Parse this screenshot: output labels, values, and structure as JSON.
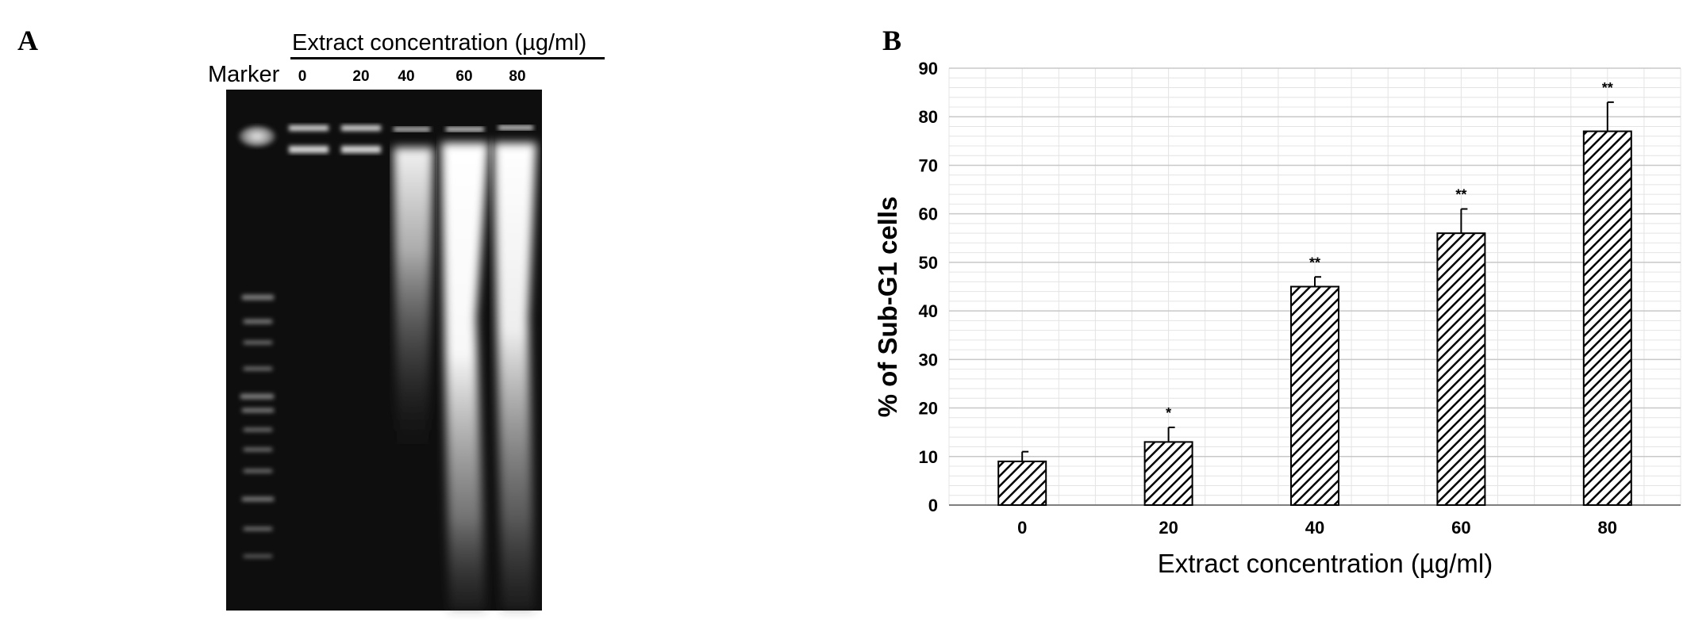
{
  "panel_a": {
    "letter": "A",
    "title": "Extract concentration (µg/ml)",
    "marker_label": "Marker",
    "lanes": [
      "0",
      "20",
      "40",
      "60",
      "80"
    ]
  },
  "panel_b": {
    "letter": "B"
  },
  "chart_data": {
    "type": "bar",
    "categories": [
      "0",
      "20",
      "40",
      "60",
      "80"
    ],
    "values": [
      9,
      13,
      45,
      56,
      77
    ],
    "errors": [
      2,
      3,
      2,
      5,
      6
    ],
    "significance": [
      "",
      "*",
      "**",
      "**",
      "**"
    ],
    "xlabel": "Extract concentration (µg/ml)",
    "ylabel": "% of Sub-G1 cells",
    "ylim": [
      0,
      90
    ],
    "yticks": [
      0,
      10,
      20,
      30,
      40,
      50,
      60,
      70,
      80,
      90
    ],
    "grid": true,
    "bar_fill": "diagonal hatch",
    "colors": {
      "bar_edge": "#000000",
      "hatch": "#000000",
      "grid_major": "#c8c8c8",
      "grid_minor": "#e4e4e4",
      "axis": "#7f7f7f"
    }
  }
}
